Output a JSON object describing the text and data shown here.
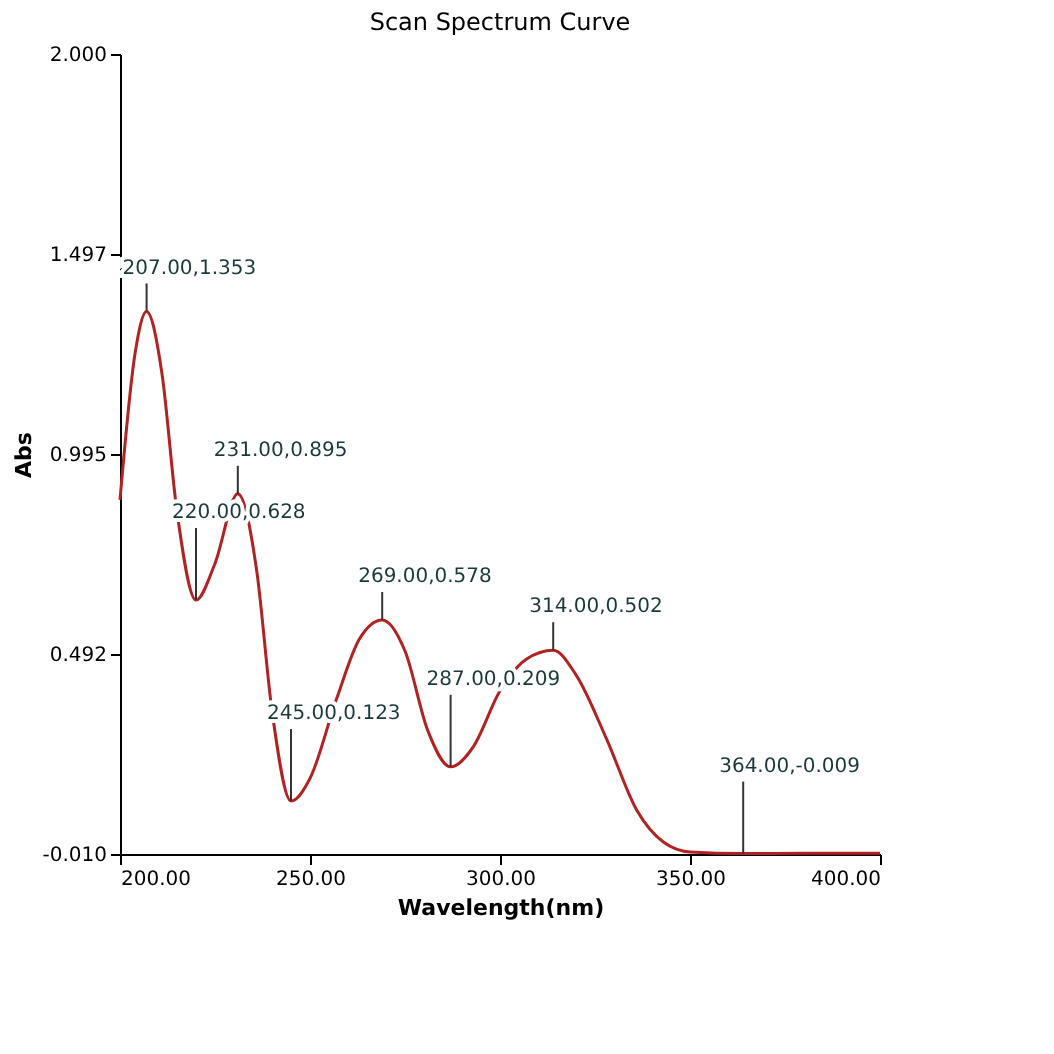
{
  "chart_data": {
    "type": "line",
    "title": "Scan Spectrum Curve",
    "xlabel": "Wavelength(nm)",
    "ylabel": "Abs",
    "series": [
      {
        "color": "#b22222",
        "x": [
          200,
          204,
          207,
          211,
          215,
          220,
          225,
          231,
          236,
          240,
          245,
          250,
          257,
          263,
          269,
          275,
          281,
          287,
          293,
          300,
          307,
          314,
          320,
          328,
          336,
          343,
          350,
          364,
          380,
          400
        ],
        "values": [
          0.88,
          1.25,
          1.353,
          1.2,
          0.85,
          0.628,
          0.72,
          0.895,
          0.7,
          0.35,
          0.123,
          0.18,
          0.38,
          0.53,
          0.578,
          0.5,
          0.3,
          0.209,
          0.26,
          0.4,
          0.48,
          0.502,
          0.44,
          0.28,
          0.1,
          0.02,
          -0.005,
          -0.009,
          -0.008,
          -0.008
        ]
      }
    ],
    "xlim": [
      200,
      400
    ],
    "ylim": [
      -0.01,
      2.0
    ],
    "xticks": [
      {
        "value": 200,
        "label": "200.00"
      },
      {
        "value": 250,
        "label": "250.00"
      },
      {
        "value": 300,
        "label": "300.00"
      },
      {
        "value": 350,
        "label": "350.00"
      },
      {
        "value": 400,
        "label": "400.00"
      }
    ],
    "yticks": [
      {
        "value": -0.01,
        "label": "-0.010"
      },
      {
        "value": 0.492,
        "label": "0.492"
      },
      {
        "value": 0.995,
        "label": "0.995"
      },
      {
        "value": 1.497,
        "label": "1.497"
      },
      {
        "value": 2.0,
        "label": "2.000"
      }
    ],
    "grid": false,
    "legend": false,
    "marker": "none",
    "line_style": "solid",
    "annotations": [
      {
        "text": "207.00,1.353",
        "x": 207,
        "y": 1.353
      },
      {
        "text": "220.00,0.628",
        "x": 220,
        "y": 0.628
      },
      {
        "text": "231.00,0.895",
        "x": 231,
        "y": 0.895
      },
      {
        "text": "245.00,0.123",
        "x": 245,
        "y": 0.123
      },
      {
        "text": "269.00,0.578",
        "x": 269,
        "y": 0.578
      },
      {
        "text": "287.00,0.209",
        "x": 287,
        "y": 0.209
      },
      {
        "text": "314.00,0.502",
        "x": 314,
        "y": 0.502
      },
      {
        "text": "364.00,-0.009",
        "x": 364,
        "y": -0.009
      }
    ]
  }
}
